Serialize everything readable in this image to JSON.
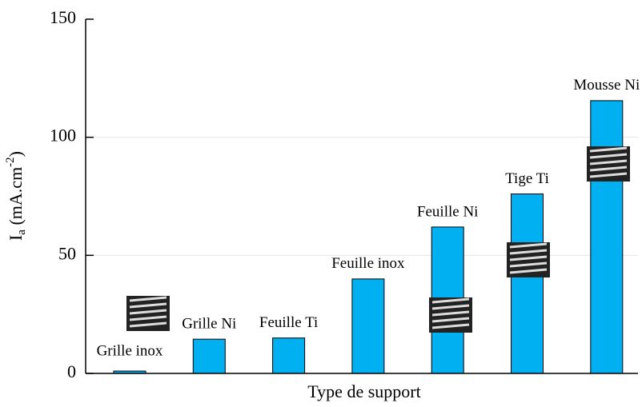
{
  "chart_data": {
    "type": "bar",
    "y_label": {
      "base": "I",
      "sub": "a",
      "unit": " (mA.cm",
      "sup": "-2",
      "end": ")"
    },
    "x_label": "Type de support",
    "categories": [
      "Grille inox",
      "Grille Ni",
      "Feuille Ti",
      "Feuille inox",
      "Feuille Ni",
      "Tige Ti",
      "Mousse Ni"
    ],
    "values": [
      1,
      14.5,
      15,
      40,
      62,
      76,
      115.5
    ],
    "color": "#00b0f0",
    "ylim": [
      0,
      150
    ],
    "yticks": [
      0,
      50,
      100,
      150
    ],
    "grid": true
  }
}
